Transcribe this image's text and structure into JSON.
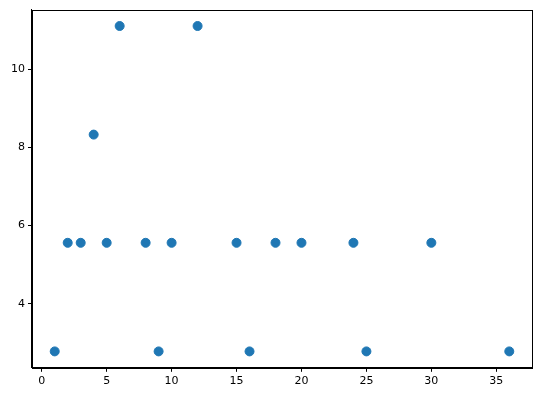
{
  "chart_data": {
    "type": "scatter",
    "x": [
      1,
      2,
      3,
      4,
      5,
      6,
      8,
      9,
      10,
      12,
      15,
      16,
      18,
      20,
      24,
      25,
      30,
      36
    ],
    "values": [
      2.78,
      5.56,
      5.56,
      8.33,
      5.56,
      11.11,
      5.56,
      2.78,
      5.56,
      11.11,
      5.56,
      2.78,
      5.56,
      5.56,
      5.56,
      2.78,
      5.56,
      2.78
    ],
    "color": "#1f77b4",
    "marker": "circle",
    "xlim": [
      -0.75,
      37.75
    ],
    "ylim": [
      2.36,
      11.53
    ],
    "xticks": [
      0,
      5,
      10,
      15,
      20,
      25,
      30,
      35
    ],
    "yticks": [
      4,
      6,
      8,
      10
    ],
    "grid": false
  }
}
